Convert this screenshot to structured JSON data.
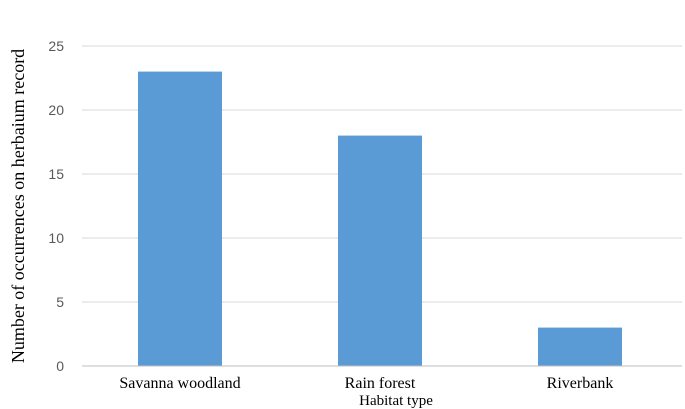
{
  "chart_data": {
    "type": "bar",
    "categories": [
      "Savanna woodland",
      "Rain forest",
      "Riverbank"
    ],
    "series": [
      {
        "values": [
          23,
          18,
          3
        ]
      }
    ],
    "xlabel": "Habitat type",
    "ylabel": "Number of occurrences on herbaium record",
    "ylim": [
      0,
      25
    ],
    "yticks": [
      0,
      5,
      10,
      15,
      20,
      25
    ],
    "grid": true,
    "legend": "none"
  },
  "colors": {
    "bar": "#5b9bd5",
    "grid": "#d9d9d9",
    "axis": "#bfbfbf"
  }
}
